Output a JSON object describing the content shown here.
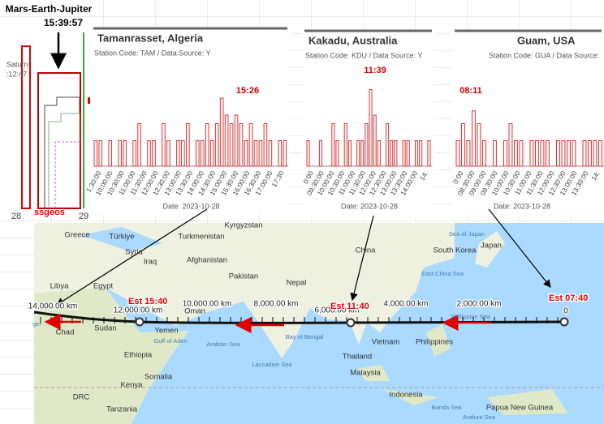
{
  "left_panel": {
    "title": "Mars-Earth-Jupiter",
    "time": "15:39:57",
    "side_label_1": "Saturn",
    "side_label_2": ":12:47",
    "watermark": "ssgeos",
    "day_labels": [
      "28",
      "29"
    ]
  },
  "stations": [
    {
      "title": "Tamanrasset, Algeria",
      "subtitle": "Station Code: TAM / Data Source: Y",
      "peak_label": "15:26",
      "date": "Date: 2023-10-28",
      "x_ticks": [
        "1:30:00",
        "10:00:00",
        "10:30:00",
        "11:00:00",
        "11:30:00",
        "12:00:00",
        "12:30:00",
        "13:00:00",
        "13:30:00",
        "14:00:00",
        "14:30:00",
        "15:00:00",
        "15:30:00",
        "16:00:00",
        "16:30:00",
        "17:00:00",
        "17:30"
      ],
      "values": [
        0.3,
        0.3,
        0,
        0.3,
        0,
        0.3,
        0.3,
        0,
        0.3,
        0.5,
        0,
        0.3,
        0.3,
        0,
        0.5,
        0.3,
        0,
        0.3,
        0.3,
        0.5,
        0,
        0.3,
        0.3,
        0.5,
        0.3,
        0.5,
        0.8,
        0.6,
        0.5,
        0.6,
        0.5,
        0.3,
        0.5,
        0.3,
        0.3,
        0.5,
        0.3,
        0,
        0.3,
        0.3
      ]
    },
    {
      "title": "Kakadu, Australia",
      "subtitle": "Station Code: KDU / Data Source: Y",
      "peak_label": "11:39",
      "date": "Date: 2023-10-28",
      "x_ticks": [
        "0:00",
        "09:30:00",
        "10:00:00",
        "10:30:00",
        "11:00:00",
        "11:30:00",
        "12:00:00",
        "12:30:00",
        "13:00:00",
        "13:30:00",
        "14:00:00",
        "14:"
      ],
      "values": [
        0.3,
        0,
        0,
        0.3,
        0,
        0,
        0.5,
        0.3,
        0,
        0.5,
        0.3,
        0,
        0.3,
        0.3,
        0.5,
        0.9,
        0.6,
        0.3,
        0,
        0.5,
        0.3,
        0.3,
        0,
        0.3,
        0.3,
        0,
        0.3,
        0.3,
        0,
        0.3
      ]
    },
    {
      "title": "Guam, USA",
      "subtitle": "Station Code: GUA / Data Source:",
      "peak_label": "08:11",
      "date": "Date: 2023-10-28",
      "x_ticks": [
        "0:00",
        "08:30:00",
        "09:00:00",
        "09:30:00",
        "10:00:00",
        "10:30:00",
        "11:00:00",
        "11:30:00",
        "12:00:00",
        "12:30:00",
        "13:00:00",
        "13:30:00",
        "14:"
      ],
      "values": [
        0.3,
        0.5,
        0.3,
        0.65,
        0.5,
        0.3,
        0,
        0.3,
        0,
        0.3,
        0.5,
        0.3,
        0.3,
        0,
        0.3,
        0.3,
        0.3,
        0.3,
        0,
        0.3,
        0.3,
        0.3,
        0.3,
        0,
        0.3,
        0.3,
        0.3,
        0.3
      ]
    }
  ],
  "map": {
    "places": [
      "Greece",
      "Türkiye",
      "Turkmenistan",
      "Kyrgyzstan",
      "Syria",
      "Iraq",
      "Afghanistan",
      "Pakistan",
      "Libya",
      "Egypt",
      "Nepal",
      "China",
      "South Korea",
      "Japan",
      "Sea of Japan",
      "East China Sea",
      "Oman",
      "Chad",
      "Sudan",
      "Yemen",
      "Ethiopia",
      "Somalia",
      "Kenya",
      "DRC",
      "Tanzania",
      "Vietnam",
      "Philippines",
      "Thailand",
      "Malaysia",
      "Indonesia",
      "Papua New Guinea",
      "Bay of Bengal",
      "Arabian Sea",
      "Laccadive Sea",
      "Gulf of Aden",
      "Philippine Sea",
      "Banda Sea",
      "Arafura Sea",
      "ger"
    ],
    "distances": [
      "14,000.00 km",
      "12,000.00 km",
      "10,000.00 km",
      "8,000.00 km",
      "6,000.00 km",
      "4,000.00 km",
      "2,000.00 km",
      "0"
    ],
    "estimates": [
      "Est 15:40",
      "Est 11:40",
      "Est 07:40"
    ]
  }
}
